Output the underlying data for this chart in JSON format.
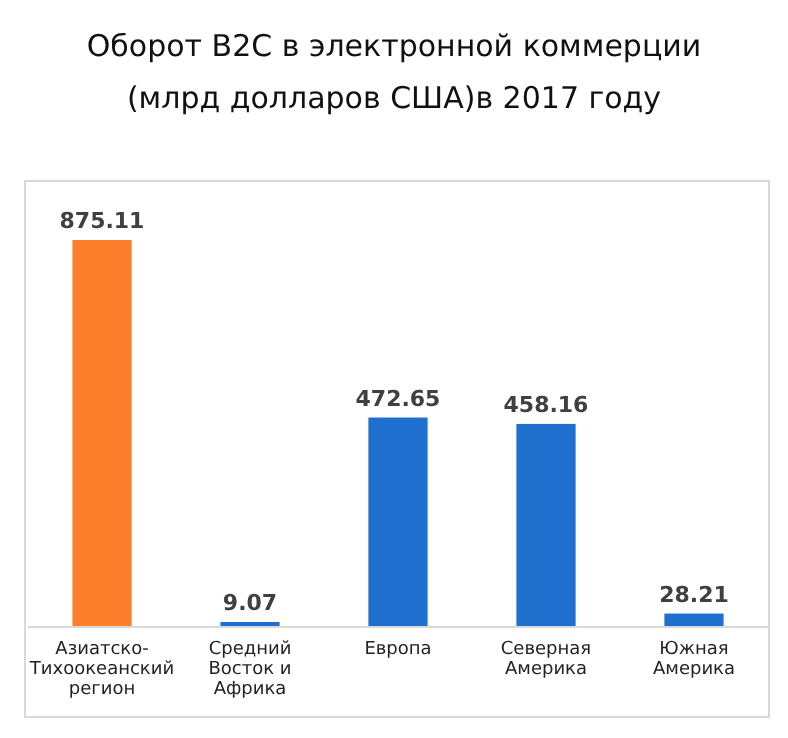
{
  "chart_data": {
    "type": "bar",
    "title": "Оборот B2C в электронной коммерции (млрд долларов США)в 2017 году",
    "categories": [
      "Азиатско-Тихоокеанский регион",
      "Средний Восток и Африка",
      "Европа",
      "Северная Америка",
      "Южная Америка"
    ],
    "values": [
      875.11,
      9.07,
      472.65,
      458.16,
      28.21
    ],
    "colors": [
      "#fd7f2c",
      "#1f6fce",
      "#1f6fce",
      "#1f6fce",
      "#1f6fce"
    ],
    "data_labels": true
  }
}
